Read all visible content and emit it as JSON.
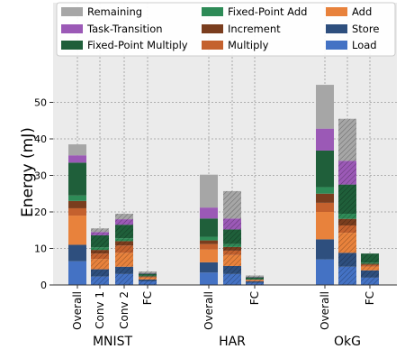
{
  "chart_data": {
    "type": "bar",
    "stacked": true,
    "title": "",
    "xlabel": "",
    "ylabel": "Energy (mJ)",
    "ylim": [
      0,
      58
    ],
    "yticks": [
      0,
      10,
      20,
      30,
      40,
      50
    ],
    "grid": true,
    "legend_position": "top",
    "groups": [
      {
        "label": "MNIST",
        "bars": [
          "Overall",
          "Conv 1",
          "Conv 2",
          "FC"
        ]
      },
      {
        "label": "HAR",
        "bars": [
          "Overall",
          "FC"
        ]
      },
      {
        "label": "OkG",
        "bars": [
          "Overall",
          "FC"
        ]
      }
    ],
    "bars": [
      {
        "group": "MNIST",
        "label": "Overall",
        "hatched": false
      },
      {
        "group": "MNIST",
        "label": "Conv 1",
        "hatched": true
      },
      {
        "group": "MNIST",
        "label": "Conv 2",
        "hatched": true
      },
      {
        "group": "MNIST",
        "label": "FC",
        "hatched": true
      },
      {
        "group": "HAR",
        "label": "Overall",
        "hatched": false
      },
      {
        "group": "HAR",
        "label": "",
        "hatched": true
      },
      {
        "group": "HAR",
        "label": "FC",
        "hatched": true
      },
      {
        "group": "OkG",
        "label": "Overall",
        "hatched": false
      },
      {
        "group": "OkG",
        "label": "",
        "hatched": true
      },
      {
        "group": "OkG",
        "label": "FC",
        "hatched": true
      }
    ],
    "series": [
      {
        "name": "Load",
        "color": "#4472c4",
        "values": [
          6.5,
          2.3,
          3.0,
          1.0,
          3.4,
          3.0,
          0.6,
          7.0,
          5.0,
          2.0
        ]
      },
      {
        "name": "Store",
        "color": "#2e4f7e",
        "values": [
          4.5,
          2.0,
          2.0,
          0.5,
          2.8,
          2.2,
          0.4,
          5.5,
          3.8,
          2.0
        ]
      },
      {
        "name": "Add",
        "color": "#e8823c",
        "values": [
          8.0,
          2.8,
          3.8,
          0.5,
          3.5,
          3.0,
          0.3,
          7.5,
          5.5,
          1.0
        ]
      },
      {
        "name": "Multiply",
        "color": "#c4612e",
        "values": [
          2.0,
          1.5,
          2.0,
          0.2,
          1.5,
          1.2,
          0.1,
          2.5,
          2.0,
          0.5
        ]
      },
      {
        "name": "Increment",
        "color": "#7a3d1e",
        "values": [
          2.0,
          1.0,
          1.2,
          0.2,
          1.0,
          1.0,
          0.1,
          2.5,
          1.8,
          0.3
        ]
      },
      {
        "name": "Fixed-Point Add",
        "color": "#2e8b57",
        "values": [
          1.5,
          0.7,
          0.8,
          0.1,
          1.0,
          0.8,
          0.1,
          1.8,
          1.4,
          0.3
        ]
      },
      {
        "name": "Fixed-Point Multiply",
        "color": "#1f5f3a",
        "values": [
          9.0,
          3.3,
          3.7,
          0.6,
          5.0,
          4.0,
          0.5,
          10.0,
          8.0,
          2.5
        ]
      },
      {
        "name": "Task-Transition",
        "color": "#9b59b6",
        "values": [
          2.0,
          0.9,
          1.5,
          0.1,
          3.0,
          3.0,
          0.1,
          6.0,
          6.5,
          0.0
        ]
      },
      {
        "name": "Remaining",
        "color": "#a6a6a6",
        "values": [
          3.0,
          1.0,
          1.5,
          0.5,
          9.0,
          7.5,
          0.4,
          12.0,
          11.5,
          0.0
        ]
      }
    ],
    "legend_order": [
      "Remaining",
      "Fixed-Point Add",
      "Add",
      "Task-Transition",
      "Increment",
      "Store",
      "Fixed-Point Multiply",
      "Multiply",
      "Load"
    ]
  }
}
